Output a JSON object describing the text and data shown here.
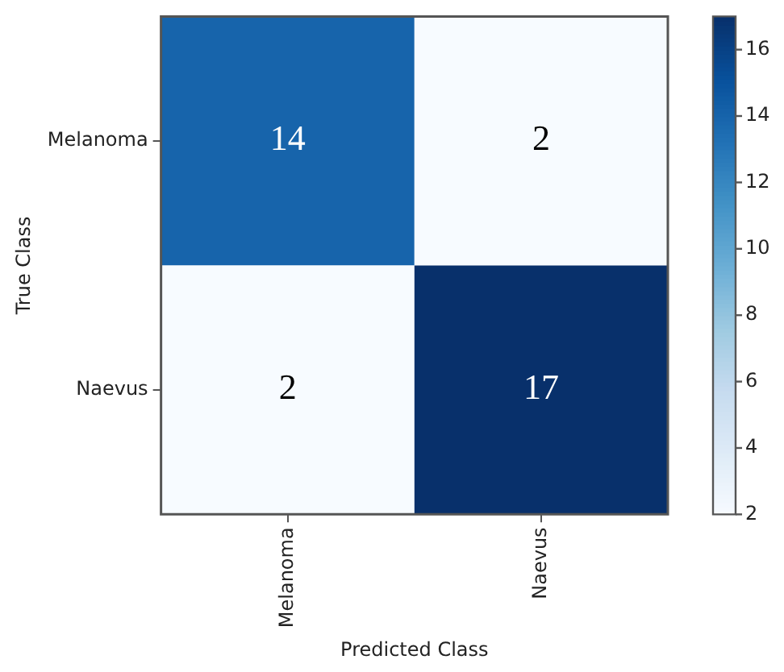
{
  "chart_data": {
    "type": "heatmap",
    "xlabel": "Predicted Class",
    "ylabel": "True Class",
    "categories": [
      "Melanoma",
      "Naevus"
    ],
    "y_categories": [
      "Melanoma",
      "Naevus"
    ],
    "cells": [
      [
        14,
        2
      ],
      [
        2,
        17
      ]
    ],
    "clim": [
      2,
      17
    ],
    "cticks": [
      2,
      4,
      6,
      8,
      10,
      12,
      14,
      16
    ],
    "data_labels": true,
    "grid": false
  }
}
